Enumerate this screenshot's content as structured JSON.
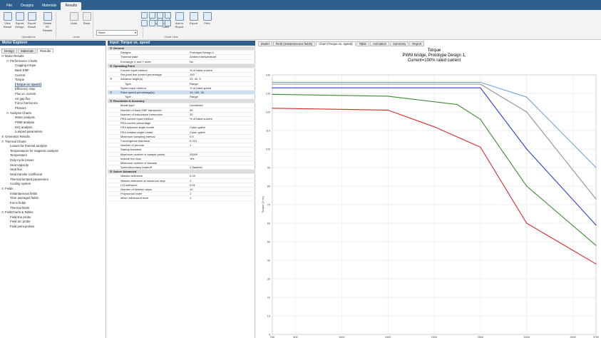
{
  "menu": [
    "File",
    "Designs",
    "Materials",
    "Results"
  ],
  "ribbon": {
    "buttons": [
      [
        "View",
        "Result"
      ],
      [
        "Export",
        "Design"
      ],
      [
        "Export",
        "Result"
      ],
      [
        "Delete FE",
        "Results"
      ],
      [
        "Undo"
      ],
      [
        "Redo"
      ],
      [
        "Copy"
      ],
      [
        "View",
        "Data"
      ],
      [
        "Add to",
        "Report"
      ],
      [
        "Export"
      ],
      [
        "Print"
      ]
    ],
    "groups": [
      "Operations",
      "Undo",
      "Chart View"
    ],
    "combo": "None"
  },
  "left": {
    "title": "Motor Explorer",
    "tabs": [
      "Design",
      "Materials",
      "Results"
    ],
    "tree": [
      {
        "t": "Motor Results",
        "l": 0,
        "e": "-"
      },
      {
        "t": "Performance Charts",
        "l": 1,
        "e": "-"
      },
      {
        "t": "Cogging torque",
        "l": 2
      },
      {
        "t": "Back EMF",
        "l": 2
      },
      {
        "t": "Current",
        "l": 2
      },
      {
        "t": "Torque",
        "l": 2
      },
      {
        "t": "Torque vs. speed",
        "l": 2,
        "s": true
      },
      {
        "t": "Efficiency map",
        "l": 2
      },
      {
        "t": "Flux vs. current",
        "l": 2
      },
      {
        "t": "Air gap flux",
        "l": 2
      },
      {
        "t": "Force harmonics",
        "l": 2
      },
      {
        "t": "Phasors",
        "l": 2
      },
      {
        "t": "Analysis Charts",
        "l": 1,
        "e": "-"
      },
      {
        "t": "Motor analysis",
        "l": 2
      },
      {
        "t": "PWM analysis",
        "l": 2
      },
      {
        "t": "D/Q analysis",
        "l": 2
      },
      {
        "t": "Lumped parameters",
        "l": 2
      },
      {
        "t": "Generator Results",
        "l": 0,
        "e": "+"
      },
      {
        "t": "Thermal Charts",
        "l": 0,
        "e": "-"
      },
      {
        "t": "Losses for thermal analysis",
        "l": 1
      },
      {
        "t": "Temperatures for magnetic analysis",
        "l": 1
      },
      {
        "t": "Temperature",
        "l": 1
      },
      {
        "t": "Duty-cycle losses",
        "l": 1
      },
      {
        "t": "Heat capacity",
        "l": 1
      },
      {
        "t": "Heat flux",
        "l": 1
      },
      {
        "t": "Heat transfer coefficient",
        "l": 1
      },
      {
        "t": "Thermal lumped parameters",
        "l": 1
      },
      {
        "t": "Cooling system",
        "l": 1
      },
      {
        "t": "Fields",
        "l": 0,
        "e": "-"
      },
      {
        "t": "Instantaneous fields",
        "l": 1
      },
      {
        "t": "Time averaged fields",
        "l": 1
      },
      {
        "t": "Force fields",
        "l": 1
      },
      {
        "t": "Thermal fields",
        "l": 1
      },
      {
        "t": "FieldCharts & Tables",
        "l": 0,
        "e": "-"
      },
      {
        "t": "Field line probe",
        "l": 1
      },
      {
        "t": "Field arc probe",
        "l": 1
      },
      {
        "t": "Field point probes",
        "l": 1
      }
    ]
  },
  "mid": {
    "title": "Input: Torque vs. speed",
    "rows": [
      {
        "k": "General",
        "c": "sec",
        "pm": "-"
      },
      {
        "k": "Designs",
        "v": "Prototype Design 1"
      },
      {
        "k": "Thermal state",
        "v": "Ambient temperature"
      },
      {
        "k": "Exchange X and Y axes",
        "v": "No"
      },
      {
        "k": "Operating Point",
        "c": "sec",
        "pm": "-"
      },
      {
        "k": "Current input method",
        "v": "% of rated current"
      },
      {
        "k": "Set point line current percentage",
        "v": "100"
      },
      {
        "k": "Advance angle(s)",
        "v": "20, 40, 5",
        "pm": "-"
      },
      {
        "k": "Type",
        "v": "Range",
        "c": "sub"
      },
      {
        "k": "Speed input method",
        "v": "% of rated speed"
      },
      {
        "k": "Rotor speed percentage(s)",
        "v": "10, 150, 20",
        "c": "sel",
        "pm": "-"
      },
      {
        "k": "Type",
        "v": "Range",
        "c": "sub"
      },
      {
        "k": "Resolution & Accuracy",
        "c": "sec",
        "pm": "-"
      },
      {
        "k": "Model type",
        "v": "Linearized"
      },
      {
        "k": "Number of back EMF harmonics",
        "v": "45"
      },
      {
        "k": "Number of inductance harmonics",
        "v": "20"
      },
      {
        "k": "PEA current input method",
        "v": "% of rated current"
      },
      {
        "k": "PEA current percentage",
        "v": ""
      },
      {
        "k": "PEA advance angle model",
        "v": "Cubic spline",
        "c": "ital"
      },
      {
        "k": "PEA rotation angle model",
        "v": "Cubic spline",
        "c": "ital"
      },
      {
        "k": "Maximum sampling interval",
        "v": "0.5"
      },
      {
        "k": "Convergence tolerance",
        "v": "0.010"
      },
      {
        "k": "Number of periods",
        "v": "1"
      },
      {
        "k": "Startup transient",
        "v": ""
      },
      {
        "k": "Maximum number of sample points",
        "v": "20000"
      },
      {
        "k": "Include iron loss",
        "v": "Yes"
      },
      {
        "k": "Maximum number of threads",
        "v": ""
      },
      {
        "k": "Speed/Accuracy tradeoff",
        "v": "1 (fastest)"
      },
      {
        "k": "Solver Advanced",
        "c": "sec",
        "pm": "-"
      },
      {
        "k": "Newton tolerance",
        "v": "0.25",
        "c": "ital"
      },
      {
        "k": "Newton tolerance at maximum step",
        "v": "1",
        "c": "ital"
      },
      {
        "k": "CG tolerance",
        "v": "0.01",
        "c": "ital"
      },
      {
        "k": "Number of Newton steps",
        "v": "10",
        "c": "ital"
      },
      {
        "k": "Polynomial order",
        "v": "1",
        "c": "ital"
      },
      {
        "k": "Mesh refinement level",
        "v": "1",
        "c": "ital"
      }
    ]
  },
  "right": {
    "tabs": [
      "Model",
      "Field (Instantaneous fields)",
      "Chart (Torque vs. speed)",
      "Table",
      "Animation",
      "Summary",
      "Report"
    ],
    "active": 2
  },
  "chart_data": {
    "type": "line",
    "title": "Torque",
    "subtitle": "PWM bridge, Prototype Design 1,",
    "subtitle2": "Current=100% rated current",
    "ylabel": "Torque (N·m)",
    "xlabel": "",
    "ylim": [
      0,
      140
    ],
    "yticks": [
      0,
      10,
      20,
      30,
      40,
      50,
      60,
      70,
      80,
      90,
      100,
      110,
      120,
      130,
      140
    ],
    "xlim": [
      250,
      3750
    ],
    "xticks": [
      250,
      500,
      1000,
      1500,
      2000,
      2500,
      3000,
      3500,
      3750
    ],
    "grid": true,
    "colors": [
      "#6fa3dc",
      "#909090",
      "#2f3fc8",
      "#3f8a35",
      "#d42a2a"
    ],
    "series": [
      {
        "x": [
          250,
          2500,
          3000,
          3750
        ],
        "y": [
          136,
          136,
          128,
          90
        ]
      },
      {
        "x": [
          250,
          2500,
          3000,
          3750
        ],
        "y": [
          135,
          135,
          120,
          73
        ]
      },
      {
        "x": [
          250,
          2500,
          3000,
          3750
        ],
        "y": [
          133,
          133,
          100,
          59
        ]
      },
      {
        "x": [
          250,
          1500,
          2250,
          2500,
          3000,
          3750
        ],
        "y": [
          129.5,
          128.5,
          124,
          116,
          80,
          48
        ]
      },
      {
        "x": [
          250,
          1500,
          2000,
          2500,
          3000,
          3750
        ],
        "y": [
          122,
          121,
          112,
          101,
          60,
          38
        ]
      }
    ]
  }
}
